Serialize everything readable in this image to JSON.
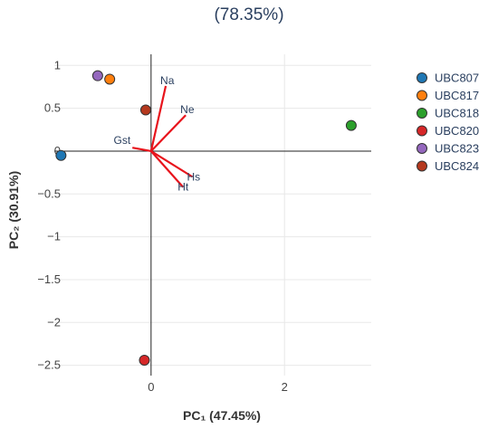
{
  "chart_data": {
    "type": "scatter",
    "title": "(78.35%)",
    "xlabel": "PC₁ (47.45%)",
    "ylabel": "PC₂ (30.91%)",
    "xlim": [
      -1.45,
      3.3
    ],
    "ylim": [
      -2.62,
      1.13
    ],
    "x_ticks": [
      {
        "v": 0,
        "label": "0"
      },
      {
        "v": 2,
        "label": "2"
      }
    ],
    "y_ticks": [
      {
        "v": 1,
        "label": "1"
      },
      {
        "v": 0.5,
        "label": "0.5"
      },
      {
        "v": 0,
        "label": "0"
      },
      {
        "v": -0.5,
        "label": "−0.5"
      },
      {
        "v": -1,
        "label": "−1"
      },
      {
        "v": -1.5,
        "label": "−1.5"
      },
      {
        "v": -2,
        "label": "−2"
      },
      {
        "v": -2.5,
        "label": "−2.5"
      }
    ],
    "grid": true,
    "legend_position": "right",
    "series": [
      {
        "name": "UBC807",
        "color": "#1f77b4",
        "x": [
          -1.35
        ],
        "y": [
          -0.05
        ]
      },
      {
        "name": "UBC817",
        "color": "#ff7f0e",
        "x": [
          -0.62
        ],
        "y": [
          0.84
        ]
      },
      {
        "name": "UBC818",
        "color": "#2ca02c",
        "x": [
          3.0
        ],
        "y": [
          0.3
        ]
      },
      {
        "name": "UBC820",
        "color": "#d62728",
        "x": [
          -0.1
        ],
        "y": [
          -2.44
        ]
      },
      {
        "name": "UBC823",
        "color": "#9467bd",
        "x": [
          -0.8
        ],
        "y": [
          0.88
        ]
      },
      {
        "name": "UBC824",
        "color": "#b5391e",
        "x": [
          -0.08
        ],
        "y": [
          0.48
        ]
      }
    ],
    "vectors": [
      {
        "label": "Na",
        "x": 0.22,
        "y": 0.76,
        "color": "#e8141c"
      },
      {
        "label": "Ne",
        "x": 0.52,
        "y": 0.42,
        "color": "#e8141c"
      },
      {
        "label": "Gst",
        "x": -0.28,
        "y": 0.04,
        "color": "#e8141c"
      },
      {
        "label": "Hs",
        "x": 0.62,
        "y": -0.3,
        "color": "#e8141c"
      },
      {
        "label": "Ht",
        "x": 0.48,
        "y": -0.42,
        "color": "#e8141c"
      }
    ]
  }
}
